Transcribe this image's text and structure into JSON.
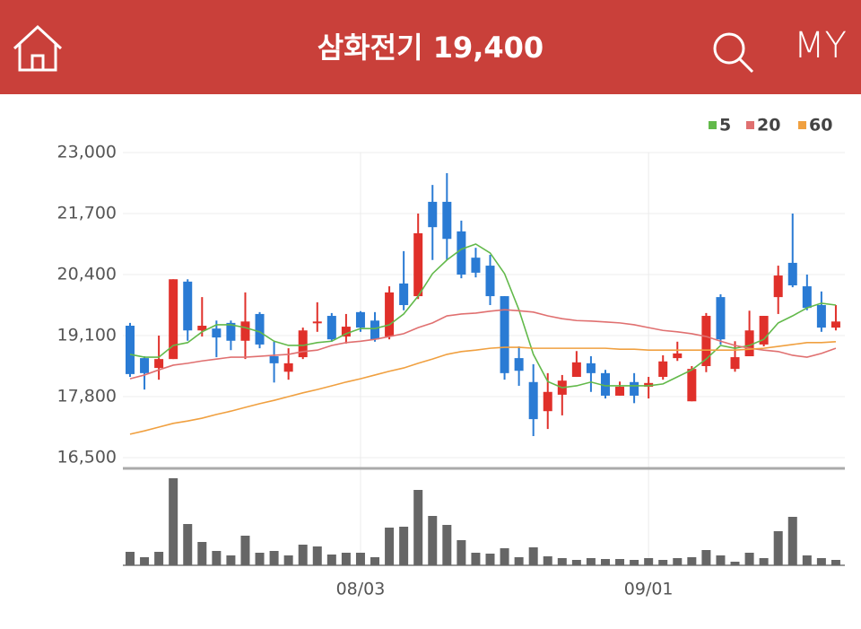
{
  "header": {
    "title": "삼화전기 19,400",
    "my": "MY"
  },
  "chart_data": {
    "type": "candlestick",
    "categories": [
      null,
      null,
      null,
      null,
      null,
      null,
      null,
      null,
      null,
      null,
      null,
      null,
      null,
      null,
      null,
      null,
      "08/03",
      null,
      null,
      null,
      null,
      null,
      null,
      null,
      null,
      null,
      null,
      null,
      null,
      null,
      null,
      null,
      null,
      null,
      null,
      null,
      "09/01",
      null,
      null,
      null,
      null,
      null,
      null,
      null,
      null,
      null,
      null,
      null,
      null,
      null
    ],
    "open": [
      19310,
      18620,
      18410,
      18600,
      20250,
      19210,
      19250,
      19370,
      18990,
      19560,
      18660,
      18330,
      18640,
      19370,
      19520,
      19080,
      19600,
      19420,
      19080,
      20210,
      19940,
      21950,
      21950,
      21320,
      20760,
      20590,
      19940,
      18620,
      18110,
      17490,
      17840,
      18220,
      18510,
      18300,
      17820,
      18110,
      18010,
      18220,
      18620,
      17700,
      18450,
      19920,
      18390,
      18660,
      18910,
      19920,
      20650,
      20150,
      19750,
      19270
    ],
    "high": [
      19370,
      18660,
      19100,
      20300,
      20300,
      19920,
      19420,
      19420,
      20020,
      19600,
      18970,
      18830,
      19270,
      19810,
      19580,
      19560,
      19620,
      19600,
      20150,
      20900,
      21700,
      22310,
      22560,
      21550,
      20970,
      20820,
      19940,
      18870,
      18490,
      18300,
      18260,
      18770,
      18660,
      18370,
      18120,
      18300,
      18220,
      18680,
      18970,
      18450,
      19580,
      19980,
      18980,
      19630,
      19520,
      20590,
      21700,
      20400,
      20040,
      19750
    ],
    "low": [
      18220,
      17950,
      18160,
      18600,
      18990,
      19080,
      18640,
      18790,
      18600,
      18830,
      18100,
      18160,
      18600,
      19180,
      18970,
      18930,
      19180,
      18970,
      19020,
      19640,
      19880,
      20710,
      20710,
      20320,
      20340,
      19750,
      18160,
      18030,
      16960,
      17110,
      17400,
      18220,
      17900,
      17760,
      17820,
      17660,
      17760,
      18160,
      18560,
      17700,
      18320,
      18910,
      18330,
      18660,
      18870,
      19560,
      20130,
      19640,
      19180,
      19210
    ],
    "close": [
      18280,
      18300,
      18600,
      20300,
      19210,
      19310,
      19060,
      18990,
      19400,
      18910,
      18510,
      18510,
      19210,
      19400,
      19020,
      19290,
      19270,
      19020,
      20020,
      19750,
      21280,
      21410,
      21160,
      20400,
      20440,
      19940,
      18300,
      18350,
      17320,
      17900,
      18140,
      18530,
      18300,
      17820,
      18010,
      17820,
      18090,
      18550,
      18720,
      18390,
      19520,
      19020,
      18640,
      19210,
      19520,
      20380,
      20170,
      19690,
      19270,
      19400
    ],
    "volume": [
      15,
      9,
      15,
      97,
      46,
      26,
      16,
      11,
      33,
      14,
      16,
      11,
      23,
      21,
      12,
      14,
      14,
      9,
      42,
      43,
      84,
      55,
      45,
      28,
      14,
      13,
      19,
      9,
      20,
      10,
      8,
      6,
      8,
      7,
      7,
      6,
      8,
      6,
      8,
      9,
      17,
      11,
      4,
      14,
      8,
      38,
      54,
      11,
      8,
      6
    ],
    "series": [
      {
        "name": "5",
        "color": "#62b94a",
        "values": [
          18700,
          18640,
          18640,
          18890,
          18950,
          19180,
          19330,
          19330,
          19270,
          19180,
          18980,
          18890,
          18890,
          18950,
          18980,
          19140,
          19250,
          19250,
          19330,
          19560,
          19940,
          20420,
          20710,
          20940,
          21050,
          20860,
          20420,
          19650,
          18700,
          18120,
          17990,
          18030,
          18110,
          18030,
          18030,
          18030,
          18030,
          18070,
          18220,
          18370,
          18600,
          18890,
          18830,
          18890,
          19020,
          19370,
          19520,
          19690,
          19790,
          19750
        ]
      },
      {
        "name": "20",
        "color": "#e07070",
        "values": [
          18180,
          18260,
          18370,
          18470,
          18510,
          18560,
          18600,
          18640,
          18640,
          18660,
          18680,
          18700,
          18760,
          18790,
          18890,
          18950,
          18980,
          19020,
          19080,
          19140,
          19270,
          19370,
          19520,
          19560,
          19580,
          19620,
          19650,
          19630,
          19600,
          19520,
          19460,
          19420,
          19410,
          19390,
          19370,
          19330,
          19270,
          19210,
          19180,
          19140,
          19080,
          18980,
          18890,
          18830,
          18790,
          18760,
          18680,
          18640,
          18720,
          18830
        ]
      },
      {
        "name": "60",
        "color": "#f0a040",
        "values": [
          17000,
          17070,
          17150,
          17230,
          17280,
          17340,
          17420,
          17490,
          17570,
          17650,
          17720,
          17800,
          17880,
          17950,
          18030,
          18110,
          18180,
          18260,
          18340,
          18410,
          18510,
          18600,
          18700,
          18760,
          18790,
          18830,
          18850,
          18850,
          18830,
          18830,
          18830,
          18830,
          18830,
          18830,
          18810,
          18810,
          18790,
          18790,
          18790,
          18790,
          18790,
          18790,
          18790,
          18810,
          18830,
          18870,
          18910,
          18950,
          18950,
          18970
        ]
      }
    ],
    "ylim": [
      16500,
      23000
    ],
    "yticks": [
      {
        "value": 16500,
        "label": "16,500"
      },
      {
        "value": 17800,
        "label": "17,800"
      },
      {
        "value": 19100,
        "label": "19,100"
      },
      {
        "value": 20400,
        "label": "20,400"
      },
      {
        "value": 21700,
        "label": "21,700"
      },
      {
        "value": 23000,
        "label": "23,000"
      }
    ],
    "up_color": "#e0302a",
    "down_color": "#2a7bd4",
    "volume_color": "#666666",
    "grid": true
  }
}
